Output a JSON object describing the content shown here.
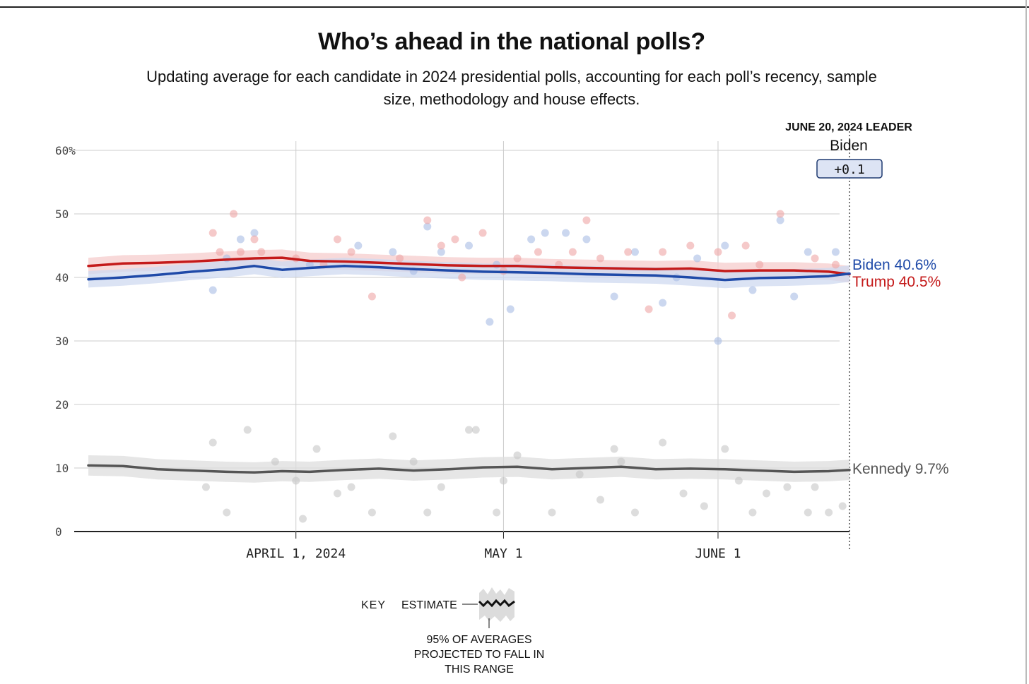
{
  "header": {
    "title": "Who’s ahead in the national polls?",
    "subtitle": "Updating average for each candidate in 2024 presidential polls, accounting for each poll’s recency, sample size, methodology and house effects."
  },
  "leader_box": {
    "heading": "JUNE 20, 2024 LEADER",
    "name": "Biden",
    "margin": "+0.1"
  },
  "key": {
    "label": "KEY",
    "estimate_label": "ESTIMATE",
    "range_label_lines": [
      "95% OF AVERAGES",
      "PROJECTED TO FALL IN",
      "THIS RANGE"
    ]
  },
  "colors": {
    "trump": "#c41a1a",
    "biden": "#1f4aa8",
    "kennedy": "#555555",
    "grid": "#cccccc"
  },
  "chart_data": {
    "type": "line",
    "ylim": [
      0,
      60
    ],
    "y_ticks": [
      "60%",
      "50",
      "40",
      "30",
      "20",
      "10",
      "0"
    ],
    "y_tick_values": [
      60,
      50,
      40,
      30,
      20,
      10,
      0
    ],
    "xlim": [
      "2024-03-02",
      "2024-06-20"
    ],
    "x_ticks": [
      {
        "label": "APRIL 1, 2024",
        "date": "2024-04-01"
      },
      {
        "label": "MAY 1",
        "date": "2024-05-01"
      },
      {
        "label": "JUNE 1",
        "date": "2024-06-01"
      }
    ],
    "grid": true,
    "end_marker_date": "2024-06-20",
    "series": [
      {
        "name": "Trump",
        "key": "trump",
        "end_label": "Trump 40.5%",
        "band": 1.3,
        "points": [
          [
            "2024-03-02",
            41.8
          ],
          [
            "2024-03-07",
            42.2
          ],
          [
            "2024-03-12",
            42.3
          ],
          [
            "2024-03-17",
            42.5
          ],
          [
            "2024-03-22",
            42.8
          ],
          [
            "2024-03-26",
            43.0
          ],
          [
            "2024-03-30",
            43.1
          ],
          [
            "2024-04-03",
            42.6
          ],
          [
            "2024-04-08",
            42.5
          ],
          [
            "2024-04-13",
            42.3
          ],
          [
            "2024-04-18",
            42.1
          ],
          [
            "2024-04-23",
            41.9
          ],
          [
            "2024-04-28",
            41.8
          ],
          [
            "2024-05-03",
            41.8
          ],
          [
            "2024-05-08",
            41.6
          ],
          [
            "2024-05-13",
            41.5
          ],
          [
            "2024-05-18",
            41.4
          ],
          [
            "2024-05-23",
            41.3
          ],
          [
            "2024-05-28",
            41.4
          ],
          [
            "2024-06-02",
            41.0
          ],
          [
            "2024-06-07",
            41.1
          ],
          [
            "2024-06-12",
            41.1
          ],
          [
            "2024-06-17",
            40.9
          ],
          [
            "2024-06-20",
            40.5
          ]
        ]
      },
      {
        "name": "Biden",
        "key": "biden",
        "end_label": "Biden 40.6%",
        "band": 1.3,
        "points": [
          [
            "2024-03-02",
            39.7
          ],
          [
            "2024-03-07",
            40.0
          ],
          [
            "2024-03-12",
            40.4
          ],
          [
            "2024-03-17",
            40.9
          ],
          [
            "2024-03-22",
            41.3
          ],
          [
            "2024-03-26",
            41.8
          ],
          [
            "2024-03-30",
            41.2
          ],
          [
            "2024-04-03",
            41.5
          ],
          [
            "2024-04-08",
            41.8
          ],
          [
            "2024-04-13",
            41.6
          ],
          [
            "2024-04-18",
            41.3
          ],
          [
            "2024-04-23",
            41.1
          ],
          [
            "2024-04-28",
            40.9
          ],
          [
            "2024-05-03",
            40.8
          ],
          [
            "2024-05-08",
            40.7
          ],
          [
            "2024-05-13",
            40.5
          ],
          [
            "2024-05-18",
            40.4
          ],
          [
            "2024-05-23",
            40.3
          ],
          [
            "2024-05-28",
            40.0
          ],
          [
            "2024-06-02",
            39.6
          ],
          [
            "2024-06-07",
            39.9
          ],
          [
            "2024-06-12",
            40.0
          ],
          [
            "2024-06-17",
            40.2
          ],
          [
            "2024-06-20",
            40.6
          ]
        ]
      },
      {
        "name": "Kennedy",
        "key": "kennedy",
        "end_label": "Kennedy 9.7%",
        "band": 1.6,
        "points": [
          [
            "2024-03-02",
            10.4
          ],
          [
            "2024-03-07",
            10.3
          ],
          [
            "2024-03-12",
            9.8
          ],
          [
            "2024-03-17",
            9.6
          ],
          [
            "2024-03-22",
            9.4
          ],
          [
            "2024-03-26",
            9.3
          ],
          [
            "2024-03-30",
            9.5
          ],
          [
            "2024-04-03",
            9.4
          ],
          [
            "2024-04-08",
            9.7
          ],
          [
            "2024-04-13",
            9.9
          ],
          [
            "2024-04-18",
            9.6
          ],
          [
            "2024-04-23",
            9.8
          ],
          [
            "2024-04-28",
            10.1
          ],
          [
            "2024-05-03",
            10.2
          ],
          [
            "2024-05-08",
            9.8
          ],
          [
            "2024-05-13",
            10.0
          ],
          [
            "2024-05-18",
            10.2
          ],
          [
            "2024-05-23",
            9.8
          ],
          [
            "2024-05-28",
            9.9
          ],
          [
            "2024-06-02",
            9.8
          ],
          [
            "2024-06-07",
            9.6
          ],
          [
            "2024-06-12",
            9.4
          ],
          [
            "2024-06-17",
            9.5
          ],
          [
            "2024-06-20",
            9.7
          ]
        ]
      }
    ],
    "polls": {
      "trump": [
        [
          "2024-03-20",
          47
        ],
        [
          "2024-03-21",
          44
        ],
        [
          "2024-03-23",
          50
        ],
        [
          "2024-03-24",
          44
        ],
        [
          "2024-03-26",
          46
        ],
        [
          "2024-03-27",
          44
        ],
        [
          "2024-04-01",
          43
        ],
        [
          "2024-04-05",
          42
        ],
        [
          "2024-04-09",
          44
        ],
        [
          "2024-04-12",
          37
        ],
        [
          "2024-04-16",
          43
        ],
        [
          "2024-04-20",
          49
        ],
        [
          "2024-04-22",
          45
        ],
        [
          "2024-04-24",
          46
        ],
        [
          "2024-04-28",
          47
        ],
        [
          "2024-05-01",
          41
        ],
        [
          "2024-05-03",
          43
        ],
        [
          "2024-05-06",
          44
        ],
        [
          "2024-05-09",
          42
        ],
        [
          "2024-05-11",
          44
        ],
        [
          "2024-05-15",
          43
        ],
        [
          "2024-05-19",
          44
        ],
        [
          "2024-05-24",
          44
        ],
        [
          "2024-05-28",
          45
        ],
        [
          "2024-06-01",
          44
        ],
        [
          "2024-06-03",
          34
        ],
        [
          "2024-06-07",
          42
        ],
        [
          "2024-06-10",
          50
        ],
        [
          "2024-06-15",
          43
        ],
        [
          "2024-06-18",
          42
        ],
        [
          "2024-04-07",
          46
        ],
        [
          "2024-05-13",
          49
        ],
        [
          "2024-05-22",
          35
        ],
        [
          "2024-06-05",
          45
        ],
        [
          "2024-04-25",
          40
        ]
      ],
      "biden": [
        [
          "2024-03-20",
          38
        ],
        [
          "2024-03-22",
          43
        ],
        [
          "2024-03-24",
          46
        ],
        [
          "2024-03-26",
          47
        ],
        [
          "2024-04-03",
          42
        ],
        [
          "2024-04-10",
          45
        ],
        [
          "2024-04-15",
          44
        ],
        [
          "2024-04-20",
          48
        ],
        [
          "2024-04-22",
          44
        ],
        [
          "2024-04-26",
          45
        ],
        [
          "2024-04-29",
          33
        ],
        [
          "2024-04-30",
          42
        ],
        [
          "2024-05-02",
          35
        ],
        [
          "2024-05-05",
          46
        ],
        [
          "2024-05-07",
          47
        ],
        [
          "2024-05-10",
          47
        ],
        [
          "2024-05-13",
          46
        ],
        [
          "2024-05-17",
          37
        ],
        [
          "2024-05-20",
          44
        ],
        [
          "2024-05-24",
          36
        ],
        [
          "2024-05-29",
          43
        ],
        [
          "2024-06-01",
          30
        ],
        [
          "2024-06-02",
          45
        ],
        [
          "2024-06-06",
          38
        ],
        [
          "2024-06-10",
          49
        ],
        [
          "2024-06-14",
          44
        ],
        [
          "2024-06-18",
          44
        ],
        [
          "2024-04-18",
          41
        ],
        [
          "2024-05-26",
          40
        ],
        [
          "2024-06-12",
          37
        ]
      ],
      "kennedy": [
        [
          "2024-03-19",
          7
        ],
        [
          "2024-03-20",
          14
        ],
        [
          "2024-03-22",
          3
        ],
        [
          "2024-03-25",
          16
        ],
        [
          "2024-03-29",
          11
        ],
        [
          "2024-04-01",
          8
        ],
        [
          "2024-04-02",
          2
        ],
        [
          "2024-04-04",
          13
        ],
        [
          "2024-04-07",
          6
        ],
        [
          "2024-04-09",
          7
        ],
        [
          "2024-04-12",
          3
        ],
        [
          "2024-04-15",
          15
        ],
        [
          "2024-04-20",
          3
        ],
        [
          "2024-04-22",
          7
        ],
        [
          "2024-04-26",
          16
        ],
        [
          "2024-04-27",
          16
        ],
        [
          "2024-04-30",
          3
        ],
        [
          "2024-05-01",
          8
        ],
        [
          "2024-05-03",
          12
        ],
        [
          "2024-05-08",
          3
        ],
        [
          "2024-05-12",
          9
        ],
        [
          "2024-05-15",
          5
        ],
        [
          "2024-05-17",
          13
        ],
        [
          "2024-05-20",
          3
        ],
        [
          "2024-05-24",
          14
        ],
        [
          "2024-05-27",
          6
        ],
        [
          "2024-05-30",
          4
        ],
        [
          "2024-06-02",
          13
        ],
        [
          "2024-06-04",
          8
        ],
        [
          "2024-06-06",
          3
        ],
        [
          "2024-06-08",
          6
        ],
        [
          "2024-06-11",
          7
        ],
        [
          "2024-06-14",
          3
        ],
        [
          "2024-06-17",
          3
        ],
        [
          "2024-06-19",
          4
        ],
        [
          "2024-05-18",
          11
        ],
        [
          "2024-06-15",
          7
        ],
        [
          "2024-04-18",
          11
        ]
      ]
    }
  }
}
